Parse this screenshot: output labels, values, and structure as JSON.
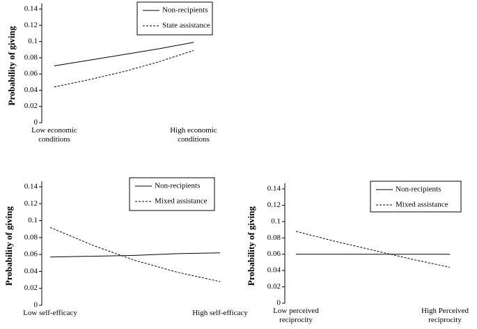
{
  "chart_data": [
    {
      "type": "line",
      "ylabel": "Probability of giving",
      "categories": [
        "Low economic conditions",
        null,
        null,
        null,
        "High economic conditions"
      ],
      "series": [
        {
          "name": "Non-recipients",
          "color": "#000000",
          "dash": false,
          "values": [
            0.07,
            0.077,
            0.084,
            0.091,
            0.099
          ]
        },
        {
          "name": "State assistance",
          "color": "#000000",
          "dash": true,
          "values": [
            0.044,
            0.053,
            0.063,
            0.075,
            0.089
          ]
        }
      ],
      "ylim": [
        0,
        0.14
      ],
      "yticks": [
        0,
        0.02,
        0.04,
        0.06,
        0.08,
        0.1,
        0.12,
        0.14
      ],
      "legend": "upper right"
    },
    {
      "type": "line",
      "ylabel": "Probability of giving",
      "categories": [
        "Low self-efficacy",
        null,
        null,
        null,
        "High self-efficacy"
      ],
      "series": [
        {
          "name": "Non-recipients",
          "color": "#000000",
          "dash": false,
          "values": [
            0.057,
            0.058,
            0.059,
            0.061,
            0.062
          ]
        },
        {
          "name": "Mixed assistance",
          "color": "#000000",
          "dash": true,
          "values": [
            0.092,
            0.071,
            0.053,
            0.039,
            0.028
          ]
        }
      ],
      "ylim": [
        0,
        0.14
      ],
      "yticks": [
        0,
        0.02,
        0.04,
        0.06,
        0.08,
        0.1,
        0.12,
        0.14
      ],
      "legend": "upper right"
    },
    {
      "type": "line",
      "ylabel": "Probability of giving",
      "categories": [
        "Low perceived reciprocity",
        null,
        null,
        null,
        "High Perceived reciprocity"
      ],
      "series": [
        {
          "name": "Non-recipients",
          "color": "#000000",
          "dash": false,
          "values": [
            0.06,
            0.06,
            0.06,
            0.06,
            0.06
          ]
        },
        {
          "name": "Mixed assistance",
          "color": "#000000",
          "dash": true,
          "values": [
            0.088,
            0.076,
            0.065,
            0.054,
            0.044
          ]
        }
      ],
      "ylim": [
        0,
        0.14
      ],
      "yticks": [
        0,
        0.02,
        0.04,
        0.06,
        0.08,
        0.1,
        0.12,
        0.14
      ],
      "legend": "upper right"
    }
  ]
}
